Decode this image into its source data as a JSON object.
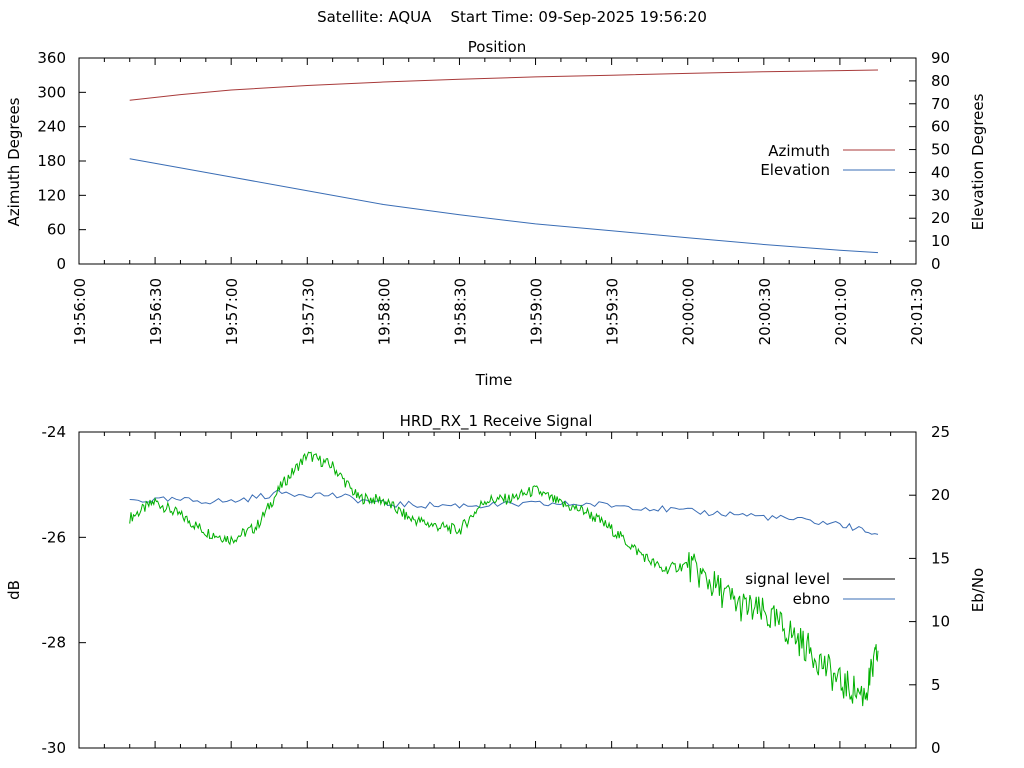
{
  "header": {
    "title": "Satellite: AQUA    Start Time: 09-Sep-2025 19:56:20"
  },
  "colors": {
    "azimuth": "#a83a3a",
    "elevation": "#3a6db5",
    "signal_level": "#000000",
    "ebno": "#3a6db5",
    "trace_green": "#00b000",
    "axis": "#000000"
  },
  "chart_data": [
    {
      "type": "line",
      "title": "Position",
      "xlabel": "Time",
      "ylabel": "Azimuth Degrees",
      "y2label": "Elevation Degrees",
      "xlim_seconds": [
        0,
        330
      ],
      "ylim": [
        0,
        360
      ],
      "y2lim": [
        0,
        90
      ],
      "yticks": [
        0,
        60,
        120,
        180,
        240,
        300,
        360
      ],
      "y2ticks": [
        0,
        10,
        20,
        30,
        40,
        50,
        60,
        70,
        80,
        90
      ],
      "xtick_labels": [
        "19:56:00",
        "19:56:30",
        "19:57:00",
        "19:57:30",
        "19:58:00",
        "19:58:30",
        "19:59:00",
        "19:59:30",
        "20:00:00",
        "20:00:30",
        "20:01:00",
        "20:01:30"
      ],
      "legend": "right",
      "series": [
        {
          "name": "Azimuth",
          "axis": "y1",
          "t": [
            20,
            40,
            60,
            90,
            120,
            150,
            180,
            210,
            240,
            270,
            300,
            315
          ],
          "values": [
            286,
            296,
            304,
            312,
            318,
            323,
            327,
            330,
            333,
            336,
            338,
            339
          ]
        },
        {
          "name": "Elevation",
          "axis": "y2",
          "t": [
            20,
            40,
            60,
            90,
            120,
            150,
            180,
            210,
            240,
            270,
            300,
            315
          ],
          "values": [
            46,
            42,
            38,
            32,
            26,
            21.5,
            17.5,
            14.5,
            11.5,
            8.5,
            6,
            5
          ]
        }
      ]
    },
    {
      "type": "line",
      "title": "HRD_RX_1 Receive Signal",
      "ylabel": "dB",
      "y2label": "Eb/No",
      "xlim_seconds": [
        0,
        330
      ],
      "ylim": [
        -30,
        -24
      ],
      "y2lim": [
        0,
        25
      ],
      "yticks": [
        -30,
        -28,
        -26,
        -24
      ],
      "y2ticks": [
        0,
        5,
        10,
        15,
        20,
        25
      ],
      "legend": "right",
      "series": [
        {
          "name": "signal level",
          "axis": "y1",
          "t": [],
          "values": []
        },
        {
          "name": "ebno",
          "axis": "y2",
          "t": [
            20,
            40,
            60,
            80,
            100,
            120,
            140,
            160,
            180,
            200,
            220,
            240,
            260,
            280,
            300,
            315
          ],
          "values": [
            19.6,
            19.6,
            19.5,
            20.2,
            20.0,
            19.3,
            19.2,
            19.2,
            19.3,
            19.3,
            19.1,
            18.7,
            18.5,
            18.1,
            17.7,
            16.9
          ]
        },
        {
          "name": "",
          "axis": "y2",
          "color_key": "trace_green",
          "t": [
            20,
            30,
            40,
            50,
            60,
            70,
            80,
            90,
            100,
            110,
            120,
            130,
            140,
            150,
            160,
            170,
            180,
            190,
            200,
            210,
            220,
            230,
            240,
            250,
            260,
            270,
            280,
            290,
            300,
            310,
            315
          ],
          "values": [
            18.2,
            19.5,
            18.4,
            17.1,
            16.5,
            17.5,
            20.8,
            23.2,
            22.3,
            19.8,
            19.6,
            18.2,
            17.6,
            17.2,
            19.6,
            19.7,
            20.4,
            19.3,
            18.7,
            17.3,
            15.6,
            14.1,
            14.5,
            12.9,
            11.3,
            10.6,
            9.2,
            7.4,
            5.1,
            4.2,
            7.7
          ]
        }
      ]
    }
  ]
}
